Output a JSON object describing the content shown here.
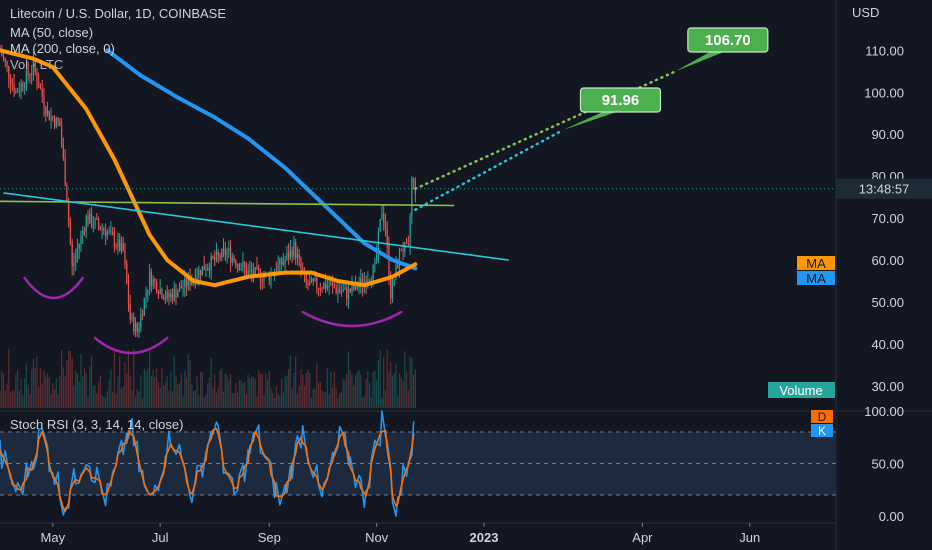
{
  "header": {
    "title": "Litecoin / U.S. Dollar, 1D, COINBASE",
    "ma50": "MA (50, close)",
    "ma200": "MA (200, close, 0)",
    "vol": "Vol · LTC",
    "stoch": "Stoch RSI (3, 3, 14, 14, close)"
  },
  "price_axis": {
    "currency": "USD",
    "ticks": [
      "110.00",
      "100.00",
      "90.00",
      "80.00",
      "70.00",
      "60.00",
      "50.00",
      "40.00",
      "30.00"
    ],
    "countdown": "13:48:57",
    "ma_tag_1": "MA",
    "ma_tag_2": "MA",
    "volume_label": "Volume"
  },
  "stoch_axis": {
    "ticks": [
      "100.00",
      "50.00",
      "0.00"
    ],
    "d_tag": "D",
    "k_tag": "K"
  },
  "time_axis": {
    "ticks": [
      "May",
      "Jul",
      "Sep",
      "Nov",
      "2023",
      "Apr",
      "Jun"
    ]
  },
  "targets": {
    "t1": "91.96",
    "t2": "106.70"
  },
  "colors": {
    "background": "#131722",
    "up": "#26a69a",
    "down": "#ef5350",
    "ma50": "#ff9800",
    "ma200": "#2196f3",
    "trend_green": "#8bc34a",
    "trend_cyan": "#26c6da",
    "pattern": "#9c27b0",
    "stoch_k": "#2196f3",
    "stoch_d": "#ff6d00",
    "target_box": "#4caf50"
  },
  "chart_data": {
    "type": "candlestick",
    "title": "Litecoin / U.S. Dollar, 1D, COINBASE",
    "ylim": [
      24,
      122
    ],
    "x_range": [
      "2022-04-01",
      "2023-07-20"
    ],
    "price_path": [
      [
        "2022-04-01",
        110
      ],
      [
        "2022-04-10",
        100
      ],
      [
        "2022-04-20",
        106
      ],
      [
        "2022-04-28",
        95
      ],
      [
        "2022-05-05",
        92
      ],
      [
        "2022-05-09",
        75
      ],
      [
        "2022-05-12",
        58
      ],
      [
        "2022-05-20",
        70
      ],
      [
        "2022-05-31",
        67
      ],
      [
        "2022-06-10",
        62
      ],
      [
        "2022-06-14",
        46
      ],
      [
        "2022-06-18",
        43
      ],
      [
        "2022-06-25",
        56
      ],
      [
        "2022-07-05",
        51
      ],
      [
        "2022-07-15",
        54
      ],
      [
        "2022-07-25",
        58
      ],
      [
        "2022-08-08",
        62
      ],
      [
        "2022-08-20",
        57
      ],
      [
        "2022-08-31",
        56
      ],
      [
        "2022-09-10",
        60
      ],
      [
        "2022-09-15",
        63
      ],
      [
        "2022-09-22",
        54
      ],
      [
        "2022-10-05",
        54
      ],
      [
        "2022-10-15",
        52
      ],
      [
        "2022-10-25",
        55
      ],
      [
        "2022-10-31",
        58
      ],
      [
        "2022-11-04",
        72
      ],
      [
        "2022-11-06",
        68
      ],
      [
        "2022-11-09",
        52
      ],
      [
        "2022-11-15",
        63
      ],
      [
        "2022-11-19",
        62
      ],
      [
        "2022-11-21",
        79
      ],
      [
        "2022-11-23",
        77
      ]
    ],
    "ma50": [
      [
        "2022-04-01",
        110
      ],
      [
        "2022-04-20",
        108
      ],
      [
        "2022-05-01",
        106
      ],
      [
        "2022-05-20",
        96
      ],
      [
        "2022-06-05",
        84
      ],
      [
        "2022-06-15",
        75
      ],
      [
        "2022-06-25",
        66
      ],
      [
        "2022-07-05",
        60
      ],
      [
        "2022-07-20",
        55
      ],
      [
        "2022-08-01",
        54
      ],
      [
        "2022-08-20",
        56
      ],
      [
        "2022-09-10",
        57
      ],
      [
        "2022-09-25",
        57
      ],
      [
        "2022-10-10",
        55
      ],
      [
        "2022-10-25",
        54
      ],
      [
        "2022-11-10",
        56
      ],
      [
        "2022-11-23",
        59
      ]
    ],
    "ma200": [
      [
        "2022-06-01",
        110
      ],
      [
        "2022-06-20",
        104
      ],
      [
        "2022-07-10",
        99
      ],
      [
        "2022-08-01",
        94
      ],
      [
        "2022-08-20",
        89
      ],
      [
        "2022-09-10",
        82
      ],
      [
        "2022-09-25",
        76
      ],
      [
        "2022-10-10",
        70
      ],
      [
        "2022-10-25",
        64
      ],
      [
        "2022-11-10",
        60
      ],
      [
        "2022-11-23",
        58
      ]
    ],
    "trendlines": [
      {
        "from": [
          "2022-04-01",
          74
        ],
        "to": [
          "2022-12-15",
          73
        ]
      },
      {
        "from": [
          "2022-04-03",
          76
        ],
        "to": [
          "2023-01-15",
          60
        ]
      }
    ],
    "targets": [
      91.96,
      106.7
    ],
    "stoch_rsi": {
      "ylim": [
        0,
        100
      ],
      "levels": [
        80,
        20
      ],
      "k_path": [
        [
          "2022-04-01",
          60
        ],
        [
          "2022-04-12",
          20
        ],
        [
          "2022-04-25",
          80
        ],
        [
          "2022-05-08",
          10
        ],
        [
          "2022-05-20",
          60
        ],
        [
          "2022-06-01",
          15
        ],
        [
          "2022-06-14",
          85
        ],
        [
          "2022-06-25",
          10
        ],
        [
          "2022-07-08",
          80
        ],
        [
          "2022-07-20",
          20
        ],
        [
          "2022-08-01",
          90
        ],
        [
          "2022-08-12",
          15
        ],
        [
          "2022-08-25",
          80
        ],
        [
          "2022-09-08",
          10
        ],
        [
          "2022-09-20",
          85
        ],
        [
          "2022-10-01",
          15
        ],
        [
          "2022-10-12",
          75
        ],
        [
          "2022-10-25",
          20
        ],
        [
          "2022-11-05",
          95
        ],
        [
          "2022-11-12",
          5
        ],
        [
          "2022-11-23",
          82
        ]
      ]
    }
  }
}
